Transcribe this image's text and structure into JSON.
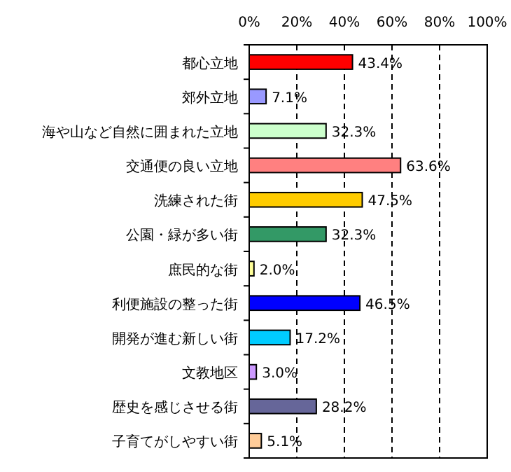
{
  "chart_data": {
    "type": "bar",
    "orientation": "horizontal",
    "categories": [
      "都心立地",
      "郊外立地",
      "海や山など自然に囲まれた立地",
      "交通便の良い立地",
      "洗練された街",
      "公園・緑が多い街",
      "庶民的な街",
      "利便施設の整った街",
      "開発が進む新しい街",
      "文教地区",
      "歴史を感じさせる街",
      "子育てがしやすい街"
    ],
    "values": [
      43.4,
      7.1,
      32.3,
      63.6,
      47.5,
      32.3,
      2.0,
      46.5,
      17.2,
      3.0,
      28.2,
      5.1
    ],
    "colors": [
      "#ff0000",
      "#9999ff",
      "#ccffcc",
      "#ff8080",
      "#ffcc00",
      "#339966",
      "#ffff99",
      "#0000ff",
      "#00ccff",
      "#cc99ff",
      "#666699",
      "#ffcc99"
    ],
    "value_labels": [
      "43.4%",
      "7.1%",
      "32.3%",
      "63.6%",
      "47.5%",
      "32.3%",
      "2.0%",
      "46.5%",
      "17.2%",
      "3.0%",
      "28.2%",
      "5.1%"
    ],
    "xlim": [
      0,
      100
    ],
    "xticks": [
      {
        "value": 0,
        "label": "0%"
      },
      {
        "value": 20,
        "label": "20%"
      },
      {
        "value": 40,
        "label": "40%"
      },
      {
        "value": 60,
        "label": "60%"
      },
      {
        "value": 80,
        "label": "80%"
      },
      {
        "value": 100,
        "label": "100%"
      }
    ],
    "grid": "x"
  }
}
